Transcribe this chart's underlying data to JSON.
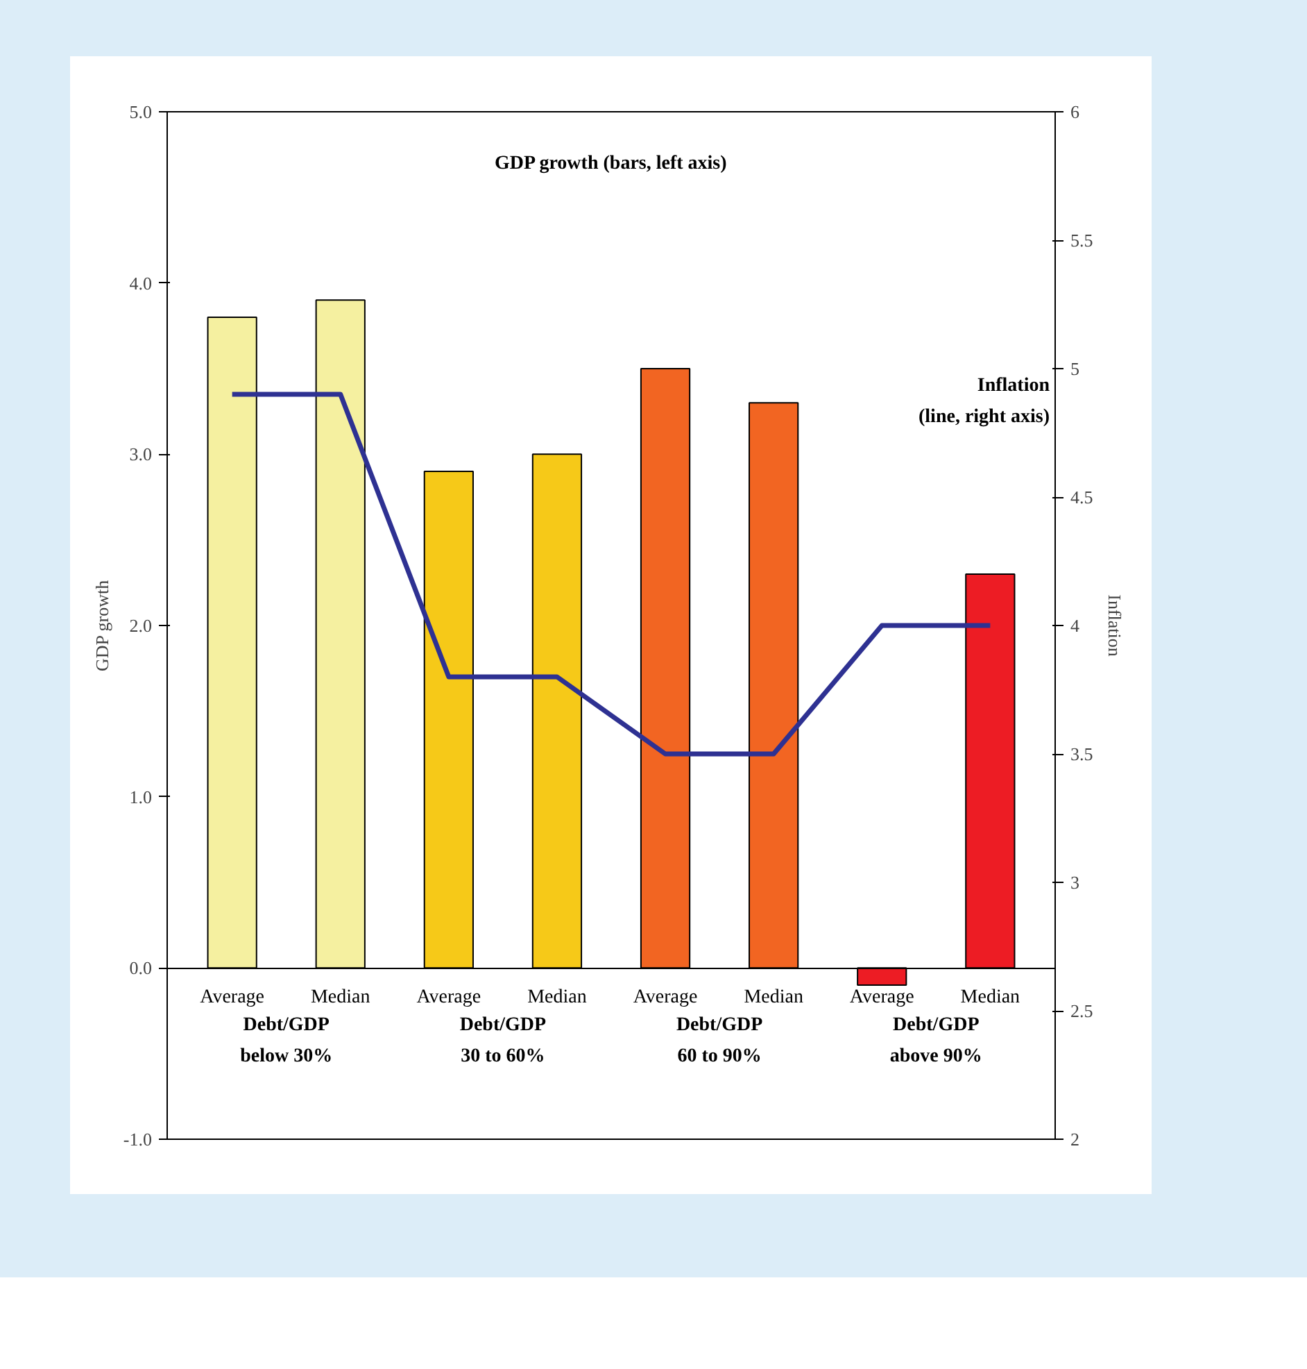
{
  "chart_data": {
    "type": "bar",
    "categories": [
      "Average",
      "Median",
      "Average",
      "Median",
      "Average",
      "Median",
      "Average",
      "Median"
    ],
    "ylabel": "GDP growth",
    "y2label": "Inflation",
    "series": [
      {
        "colors": [
          "#f5f0a0",
          "#f5f0a0",
          "#f6c918",
          "#f6c918",
          "#f26522",
          "#f26522",
          "#ed1c24",
          "#ed1c24"
        ],
        "values": [
          3.8,
          3.9,
          2.9,
          3.0,
          3.5,
          3.3,
          -0.1,
          2.3
        ]
      },
      {
        "type": "line",
        "axis": "y2",
        "color": "#2e3192",
        "values": [
          4.9,
          4.9,
          3.8,
          3.8,
          3.5,
          3.5,
          4.0,
          4.0
        ]
      }
    ],
    "ylim": [
      -1,
      5
    ],
    "yticks": [
      {
        "value": -1,
        "label": "-1.0"
      },
      {
        "value": 0,
        "label": "0.0"
      },
      {
        "value": 1,
        "label": "1.0"
      },
      {
        "value": 2,
        "label": "2.0"
      },
      {
        "value": 3,
        "label": "3.0"
      },
      {
        "value": 4,
        "label": "4.0"
      },
      {
        "value": 5,
        "label": "5.0"
      }
    ],
    "y2lim": [
      2,
      6
    ],
    "y2ticks": [
      2,
      2.5,
      3,
      3.5,
      4,
      4.5,
      5,
      5.5,
      6
    ],
    "grid": false,
    "marker": "none",
    "line_style": "solid",
    "annotations": [
      "GDP growth (bars, left axis)",
      "Inflation\n(line, right axis)",
      "Debt/GDP\nbelow 30%",
      "Debt/GDP\n30 to 60%",
      "Debt/GDP\n60 to 90%",
      "Debt/GDP\nabove 90%"
    ]
  }
}
